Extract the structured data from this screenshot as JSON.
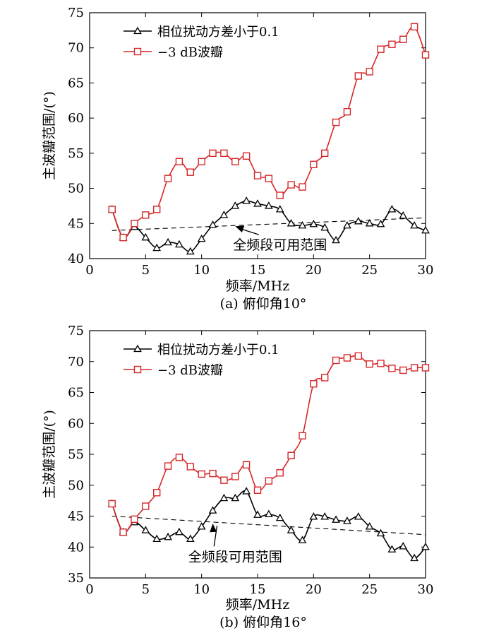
{
  "chart_data": [
    {
      "type": "line",
      "caption": "(a) 俯仰角10°",
      "xlabel": "频率/MHz",
      "ylabel": "主波瓣范围/(°)",
      "xlim": [
        0,
        30
      ],
      "ylim": [
        40,
        75
      ],
      "xticks": [
        0,
        5,
        10,
        15,
        20,
        25,
        30
      ],
      "yticks": [
        40,
        45,
        50,
        55,
        60,
        65,
        70,
        75
      ],
      "grid": false,
      "legend_position": "top-left",
      "series": [
        {
          "name": "相位扰动方差小于0.1",
          "color": "#000000",
          "marker": "triangle",
          "x": [
            2,
            3,
            4,
            5,
            6,
            7,
            8,
            9,
            10,
            11,
            12,
            13,
            14,
            15,
            16,
            17,
            18,
            19,
            20,
            21,
            22,
            23,
            24,
            25,
            26,
            27,
            28,
            29,
            30
          ],
          "y": [
            47,
            43,
            44.5,
            43,
            41.5,
            42.3,
            42,
            41,
            42.8,
            44.8,
            46.2,
            47.5,
            48.2,
            47.8,
            47.5,
            47,
            45,
            44.7,
            44.9,
            44.4,
            42.6,
            44.7,
            45.3,
            45,
            44.9,
            47,
            46.1,
            44.7,
            44
          ]
        },
        {
          "name": "−3 dB波瓣",
          "color": "#d62728",
          "marker": "square",
          "x": [
            2,
            3,
            4,
            5,
            6,
            7,
            8,
            9,
            10,
            11,
            12,
            13,
            14,
            15,
            16,
            17,
            18,
            19,
            20,
            21,
            22,
            23,
            24,
            25,
            26,
            27,
            28,
            29,
            30
          ],
          "y": [
            47,
            43,
            45,
            46.2,
            47,
            51.4,
            53.8,
            52.3,
            53.8,
            55,
            55,
            53.8,
            54.6,
            51.8,
            51.4,
            49,
            50.5,
            50.2,
            53.4,
            55,
            59.4,
            60.9,
            66,
            66.6,
            69.8,
            70.5,
            71.2,
            73,
            69
          ]
        }
      ],
      "reference_line": {
        "style": "dashed",
        "x": [
          2,
          30
        ],
        "y": [
          44,
          45.8
        ]
      },
      "annotation": {
        "text": "全频段可用范围",
        "arrow_to": {
          "x": 13,
          "y": 44.6
        },
        "text_at": {
          "x": 17,
          "y": 42
        }
      }
    },
    {
      "type": "line",
      "caption": "(b) 俯仰角16°",
      "xlabel": "频率/MHz",
      "ylabel": "主波瓣范围/(°)",
      "xlim": [
        0,
        30
      ],
      "ylim": [
        35,
        75
      ],
      "xticks": [
        0,
        5,
        10,
        15,
        20,
        25,
        30
      ],
      "yticks": [
        35,
        40,
        45,
        50,
        55,
        60,
        65,
        70,
        75
      ],
      "grid": false,
      "legend_position": "top-left",
      "series": [
        {
          "name": "相位扰动方差小于0.1",
          "color": "#000000",
          "marker": "triangle",
          "x": [
            2,
            3,
            4,
            5,
            6,
            7,
            8,
            9,
            10,
            11,
            12,
            13,
            14,
            15,
            16,
            17,
            18,
            19,
            20,
            21,
            22,
            23,
            24,
            25,
            26,
            27,
            28,
            29,
            30
          ],
          "y": [
            47,
            42.4,
            44,
            42.7,
            41.3,
            41.6,
            42.4,
            41.3,
            43.3,
            45.9,
            47.9,
            47.9,
            49,
            45.2,
            45.3,
            44.7,
            42.7,
            41.1,
            44.9,
            44.9,
            44.4,
            44.2,
            44.9,
            43.3,
            42.2,
            39.6,
            40.1,
            38.2,
            40
          ]
        },
        {
          "name": "−3 dB波瓣",
          "color": "#d62728",
          "marker": "square",
          "x": [
            2,
            3,
            4,
            5,
            6,
            7,
            8,
            9,
            10,
            11,
            12,
            13,
            14,
            15,
            16,
            17,
            18,
            19,
            20,
            21,
            22,
            23,
            24,
            25,
            26,
            27,
            28,
            29,
            30
          ],
          "y": [
            47,
            42.4,
            44.5,
            46.6,
            48.8,
            53.1,
            54.5,
            53,
            51.8,
            51.9,
            50.8,
            51.4,
            53.3,
            49.2,
            50.7,
            52,
            54.8,
            58,
            66.4,
            67.4,
            70.2,
            70.6,
            70.9,
            69.6,
            69.7,
            68.9,
            68.6,
            69,
            69
          ]
        }
      ],
      "reference_line": {
        "style": "dashed",
        "x": [
          2,
          30
        ],
        "y": [
          45,
          42
        ]
      },
      "annotation": {
        "text": "全频段可用范围",
        "arrow_to": {
          "x": 11,
          "y": 43.8
        },
        "text_at": {
          "x": 13,
          "y": 38.5
        }
      }
    }
  ]
}
